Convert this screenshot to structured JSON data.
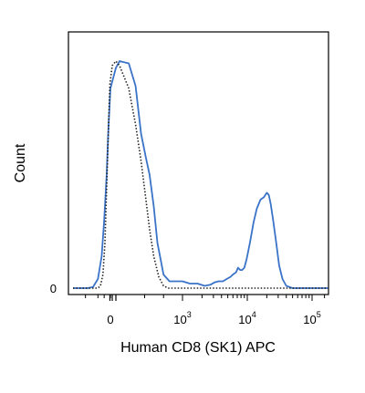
{
  "chart_data": {
    "type": "line",
    "title": "",
    "xlabel": "Human CD8 (SK1) APC",
    "ylabel": "Count",
    "x_scale": "biexponential",
    "xlim": [
      -1500,
      250000
    ],
    "ylim": [
      0,
      1.0
    ],
    "grid": false,
    "legend": "none",
    "x_tick_labels": [
      {
        "base": "0",
        "exp": "",
        "value": 0
      },
      {
        "base": "10",
        "exp": "3",
        "value": 1000
      },
      {
        "base": "10",
        "exp": "4",
        "value": 10000
      },
      {
        "base": "10",
        "exp": "5",
        "value": 100000
      }
    ],
    "y_tick_labels": [
      {
        "label": "0",
        "value": 0
      }
    ],
    "series": [
      {
        "style": "solid",
        "color": "#3a73c8",
        "x": [
          -1500,
          -900,
          -700,
          -500,
          -350,
          -250,
          -150,
          -80,
          0,
          60,
          100,
          140,
          180,
          220,
          260,
          300,
          350,
          400,
          500,
          620,
          800,
          1000,
          1300,
          1700,
          2200,
          2700,
          3100,
          3600,
          4200,
          4800,
          5500,
          6000,
          6700,
          7200,
          7800,
          8300,
          9000,
          9800,
          11000,
          12500,
          14000,
          16000,
          18000,
          20000,
          21500,
          23000,
          25000,
          28000,
          31000,
          35000,
          40000,
          50000,
          60000,
          80000,
          100000,
          150000,
          250000
        ],
        "y": [
          0,
          0,
          0.005,
          0.04,
          0.14,
          0.3,
          0.5,
          0.7,
          0.88,
          0.97,
          1.0,
          0.99,
          0.89,
          0.68,
          0.58,
          0.5,
          0.36,
          0.2,
          0.06,
          0.03,
          0.03,
          0.03,
          0.02,
          0.02,
          0.01,
          0.015,
          0.025,
          0.03,
          0.03,
          0.04,
          0.05,
          0.06,
          0.07,
          0.09,
          0.08,
          0.08,
          0.09,
          0.13,
          0.2,
          0.29,
          0.35,
          0.39,
          0.4,
          0.42,
          0.41,
          0.37,
          0.3,
          0.2,
          0.1,
          0.04,
          0.01,
          0,
          0,
          0,
          0,
          0,
          0
        ]
      },
      {
        "style": "dotted",
        "color": "#222222",
        "x": [
          -1500,
          -500,
          -400,
          -300,
          -220,
          -150,
          -80,
          -20,
          20,
          60,
          100,
          140,
          180,
          220,
          260,
          300,
          350,
          420,
          500,
          600,
          800,
          1000,
          250000
        ],
        "y": [
          0,
          0,
          0.01,
          0.06,
          0.2,
          0.45,
          0.7,
          0.9,
          0.98,
          1.0,
          0.98,
          0.88,
          0.72,
          0.56,
          0.4,
          0.26,
          0.14,
          0.05,
          0.01,
          0,
          0,
          0,
          0
        ]
      }
    ]
  }
}
